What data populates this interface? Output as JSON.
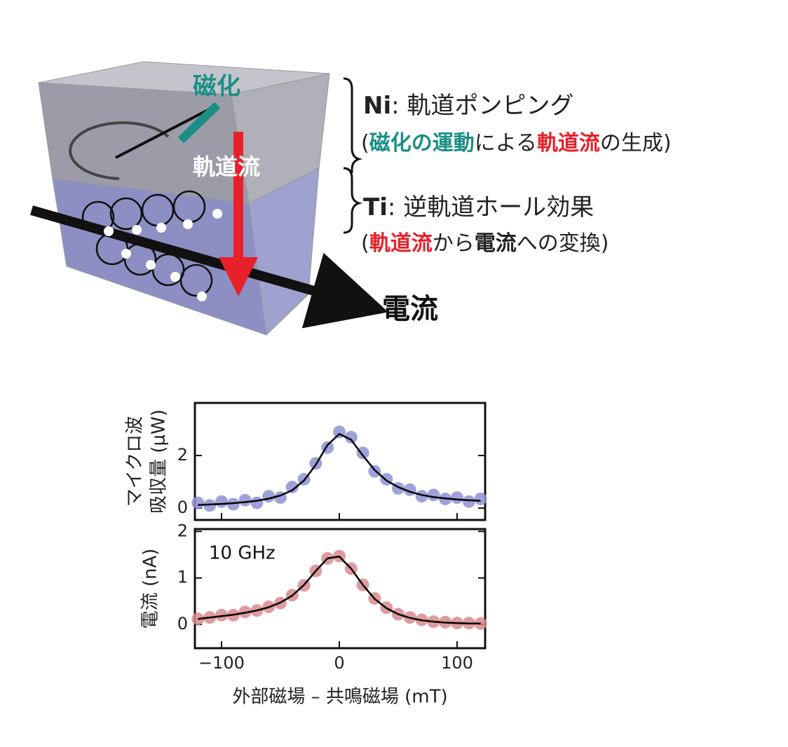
{
  "diagram": {
    "magnetization": "磁化",
    "orbital_current": "軌道流",
    "current": "電流",
    "ni_line": {
      "element": "Ni",
      "text": ": 軌道ポンピング"
    },
    "ni_sub": [
      "(",
      "磁化の運動",
      "による",
      "軌道流",
      "の生成)"
    ],
    "ti_line": {
      "element": "Ti",
      "text": ": 逆軌道ホール効果"
    },
    "ti_sub": [
      "(",
      "軌道流",
      "から",
      "電流",
      "への変換)"
    ]
  },
  "chart_data": [
    {
      "type": "scatter",
      "ylabel": [
        "マイクロ波",
        "吸収量 (μW)"
      ],
      "x": [
        -120,
        -110,
        -100,
        -90,
        -80,
        -70,
        -60,
        -50,
        -40,
        -30,
        -20,
        -10,
        0,
        10,
        20,
        30,
        40,
        50,
        60,
        70,
        80,
        90,
        100,
        110,
        120
      ],
      "series": [
        {
          "name": "data",
          "kind": "scatter",
          "color": "#8e92d2",
          "values": [
            0.2,
            0.1,
            0.25,
            0.15,
            0.3,
            0.2,
            0.45,
            0.4,
            0.8,
            1.1,
            1.7,
            2.3,
            2.9,
            2.7,
            2.1,
            1.4,
            1.1,
            0.75,
            0.7,
            0.45,
            0.5,
            0.35,
            0.4,
            0.25,
            0.35
          ]
        },
        {
          "name": "fit",
          "kind": "line",
          "color": "#000000",
          "values": [
            0.12,
            0.14,
            0.16,
            0.19,
            0.23,
            0.28,
            0.36,
            0.48,
            0.68,
            1.05,
            1.65,
            2.4,
            2.82,
            2.6,
            2.0,
            1.45,
            1.05,
            0.8,
            0.62,
            0.5,
            0.42,
            0.37,
            0.33,
            0.3,
            0.28
          ]
        }
      ],
      "xlim": [
        -122.6,
        123.8
      ],
      "ylim": [
        -0.45,
        4.0
      ],
      "yticks": [
        0,
        2
      ]
    },
    {
      "type": "scatter",
      "ylabel": [
        "電流 (nA)"
      ],
      "annotation": "10 GHz",
      "xlabel": "外部磁場 – 共鳴磁場 (mT)",
      "x": [
        -120,
        -110,
        -100,
        -90,
        -80,
        -70,
        -60,
        -50,
        -40,
        -30,
        -20,
        -10,
        0,
        10,
        20,
        30,
        40,
        50,
        60,
        70,
        80,
        90,
        100,
        110,
        120
      ],
      "series": [
        {
          "name": "data",
          "kind": "scatter",
          "color": "#d98a8e",
          "values": [
            0.12,
            0.15,
            0.2,
            0.2,
            0.27,
            0.3,
            0.38,
            0.46,
            0.63,
            0.84,
            1.15,
            1.42,
            1.47,
            1.2,
            0.85,
            0.56,
            0.36,
            0.22,
            0.15,
            0.1,
            0.06,
            0.05,
            0.03,
            0.03,
            0.02
          ]
        },
        {
          "name": "fit",
          "kind": "line",
          "color": "#000000",
          "values": [
            0.12,
            0.15,
            0.18,
            0.21,
            0.25,
            0.3,
            0.37,
            0.47,
            0.62,
            0.85,
            1.15,
            1.42,
            1.46,
            1.2,
            0.85,
            0.55,
            0.35,
            0.22,
            0.14,
            0.09,
            0.06,
            0.04,
            0.03,
            0.02,
            0.02
          ]
        }
      ],
      "xlim": [
        -122.6,
        123.8
      ],
      "ylim": [
        -0.51,
        2.05
      ],
      "yticks": [
        0,
        1,
        2
      ],
      "xticks": [
        {
          "value": -100,
          "label": "−100"
        },
        0,
        100
      ]
    }
  ]
}
